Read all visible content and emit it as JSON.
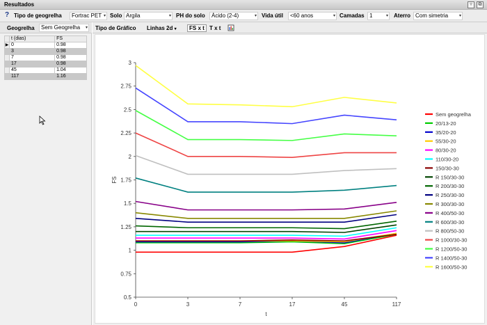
{
  "window": {
    "title": "Resultados"
  },
  "params": {
    "tipo_label": "Tipo de geogrelha",
    "tipo_value": "Fortrac PET",
    "solo_label": "Solo",
    "solo_value": "Argila",
    "ph_label": "PH do solo",
    "ph_value": "Ácido (2-4)",
    "vida_label": "Vida útil",
    "vida_value": "<60 anos",
    "camadas_label": "Camadas",
    "camadas_value": "1",
    "aterro_label": "Aterro",
    "aterro_value": "Com simetria"
  },
  "left": {
    "geogrelha_label": "Geogrelha",
    "geogrelha_value": "Sem Geogrelha",
    "table": {
      "headers": [
        "t (dias)",
        "FS"
      ],
      "rows": [
        [
          "0",
          "0.98"
        ],
        [
          "3",
          "0.98"
        ],
        [
          "7",
          "0.98"
        ],
        [
          "17",
          "0.98"
        ],
        [
          "45",
          "1.04"
        ],
        [
          "117",
          "1.16"
        ]
      ]
    }
  },
  "charttools": {
    "tipo_label": "Tipo de Gráfico",
    "tipo_value": "Linhas 2d",
    "btn1": "FS x t",
    "btn2": "T x t"
  },
  "chart_data": {
    "type": "line",
    "xlabel": "t",
    "ylabel": "FS",
    "x": [
      "0",
      "3",
      "7",
      "17",
      "45",
      "117"
    ],
    "ylim": [
      0.5,
      3
    ],
    "yticks": [
      "0.5",
      "0.75",
      "1",
      "1.25",
      "1.5",
      "1.75",
      "2",
      "2.25",
      "2.5",
      "2.75",
      "3"
    ],
    "grid": false,
    "legend_position": "right",
    "series": [
      {
        "name": "Sem geogrelha",
        "color": "#ff0000",
        "values": [
          0.98,
          0.98,
          0.98,
          0.98,
          1.04,
          1.16
        ]
      },
      {
        "name": "20/13-20",
        "color": "#00cc00",
        "values": [
          1.08,
          1.08,
          1.08,
          1.09,
          1.07,
          1.17
        ]
      },
      {
        "name": "35/20-20",
        "color": "#0000cc",
        "values": [
          1.09,
          1.09,
          1.09,
          1.1,
          1.08,
          1.18
        ]
      },
      {
        "name": "55/30-20",
        "color": "#ffcc00",
        "values": [
          1.1,
          1.1,
          1.1,
          1.1,
          1.09,
          1.18
        ]
      },
      {
        "name": "80/30-20",
        "color": "#ff00ff",
        "values": [
          1.13,
          1.13,
          1.13,
          1.13,
          1.12,
          1.21
        ]
      },
      {
        "name": "110/30-20",
        "color": "#00ffff",
        "values": [
          1.16,
          1.16,
          1.16,
          1.16,
          1.15,
          1.24
        ]
      },
      {
        "name": "150/30-30",
        "color": "#880000",
        "values": [
          1.1,
          1.1,
          1.1,
          1.11,
          1.1,
          1.17
        ]
      },
      {
        "name": "R 150/30-30",
        "color": "#004400",
        "values": [
          1.2,
          1.2,
          1.2,
          1.2,
          1.19,
          1.27
        ]
      },
      {
        "name": "R 200/30-30",
        "color": "#006600",
        "values": [
          1.26,
          1.24,
          1.24,
          1.24,
          1.23,
          1.31
        ]
      },
      {
        "name": "R 250/30-30",
        "color": "#000080",
        "values": [
          1.34,
          1.3,
          1.3,
          1.3,
          1.3,
          1.38
        ]
      },
      {
        "name": "R 300/30-30",
        "color": "#888800",
        "values": [
          1.4,
          1.34,
          1.34,
          1.34,
          1.34,
          1.42
        ]
      },
      {
        "name": "R 400/50-30",
        "color": "#880088",
        "values": [
          1.52,
          1.43,
          1.43,
          1.43,
          1.44,
          1.51
        ]
      },
      {
        "name": "R 600/30-30",
        "color": "#008080",
        "values": [
          1.77,
          1.62,
          1.62,
          1.62,
          1.64,
          1.69
        ]
      },
      {
        "name": "R 800/50-30",
        "color": "#c0c0c0",
        "values": [
          2.01,
          1.81,
          1.81,
          1.81,
          1.85,
          1.87
        ]
      },
      {
        "name": "R 1000/30-30",
        "color": "#ee4444",
        "values": [
          2.25,
          2.0,
          2.0,
          1.99,
          2.04,
          2.04
        ]
      },
      {
        "name": "R 1200/50-30",
        "color": "#44ff44",
        "values": [
          2.49,
          2.18,
          2.18,
          2.17,
          2.24,
          2.22
        ]
      },
      {
        "name": "R 1400/50-30",
        "color": "#4444ff",
        "values": [
          2.73,
          2.37,
          2.37,
          2.35,
          2.44,
          2.39
        ]
      },
      {
        "name": "R 1600/50-30",
        "color": "#ffff44",
        "values": [
          2.97,
          2.56,
          2.55,
          2.53,
          2.63,
          2.57
        ]
      }
    ]
  }
}
